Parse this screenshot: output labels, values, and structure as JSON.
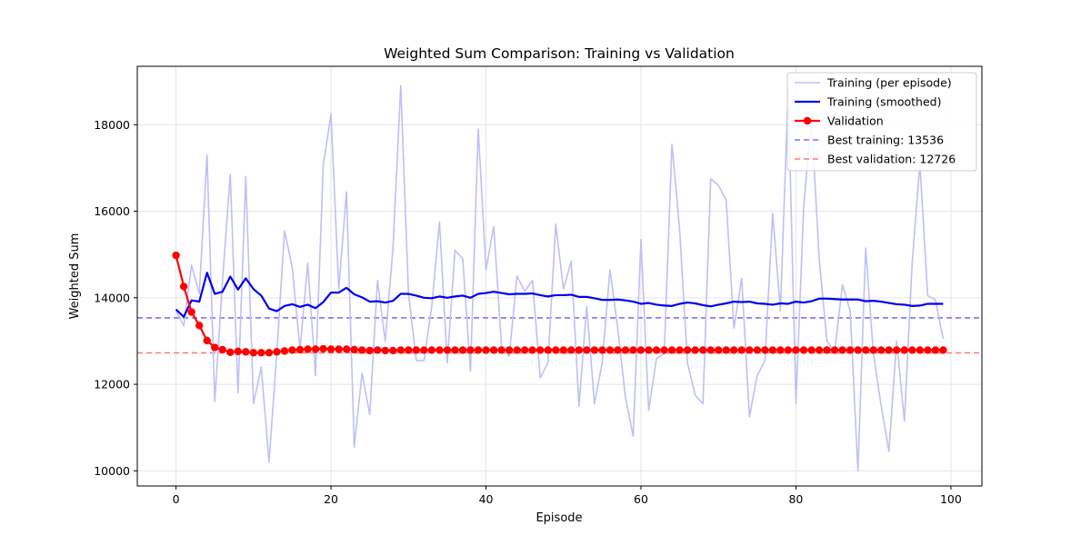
{
  "chart_data": {
    "type": "line",
    "title": "Weighted Sum Comparison: Training vs Validation",
    "xlabel": "Episode",
    "ylabel": "Weighted Sum",
    "xlim": [
      -5,
      104
    ],
    "ylim": [
      9650,
      19350
    ],
    "xticks": [
      0,
      20,
      40,
      60,
      80,
      100
    ],
    "yticks": [
      10000,
      12000,
      14000,
      16000,
      18000
    ],
    "grid": true,
    "legend_position": "top-right",
    "colors": {
      "training_raw": "#bfbff7",
      "training_smoothed": "#0000ee",
      "validation": "#ff0000",
      "best_training": "#7777ee",
      "best_validation": "#ff7777"
    },
    "series": [
      {
        "name": "Training (per episode)",
        "style": "line",
        "x_start": 0,
        "values": [
          13700,
          13350,
          14750,
          14100,
          17300,
          11600,
          14400,
          16850,
          11800,
          16800,
          11550,
          12400,
          10200,
          12700,
          15550,
          14700,
          12800,
          14800,
          12200,
          17050,
          18250,
          14200,
          16450,
          10550,
          12250,
          11300,
          14400,
          13000,
          15150,
          18900,
          14100,
          12550,
          12550,
          13800,
          15750,
          12500,
          15100,
          14900,
          12300,
          17900,
          14650,
          15650,
          12900,
          12650,
          14500,
          14150,
          14400,
          12150,
          12500,
          15700,
          14200,
          14850,
          11500,
          13800,
          11550,
          12500,
          14650,
          13300,
          11700,
          10800,
          15350,
          11400,
          12600,
          12700,
          17550,
          15550,
          12500,
          11750,
          11550,
          16750,
          16600,
          16250,
          13300,
          14450,
          11250,
          12200,
          12550,
          15950,
          13700,
          18850,
          11550,
          16100,
          18150,
          14900,
          13000,
          12750,
          14300,
          13700,
          10000,
          15150,
          12700,
          11500,
          10450,
          13000,
          11150,
          14800,
          17100,
          14050,
          13950,
          13050
        ]
      },
      {
        "name": "Training (smoothed)",
        "style": "line",
        "x_start": 0,
        "values": [
          13730,
          13560,
          13940,
          13910,
          14580,
          14090,
          14140,
          14490,
          14190,
          14450,
          14200,
          14050,
          13750,
          13690,
          13810,
          13850,
          13790,
          13840,
          13760,
          13900,
          14120,
          14120,
          14230,
          14080,
          14010,
          13910,
          13920,
          13890,
          13930,
          14090,
          14090,
          14050,
          14000,
          13990,
          14030,
          14000,
          14030,
          14050,
          14000,
          14090,
          14110,
          14140,
          14110,
          14080,
          14090,
          14090,
          14100,
          14060,
          14030,
          14060,
          14060,
          14070,
          14020,
          14020,
          13990,
          13950,
          13950,
          13960,
          13940,
          13910,
          13860,
          13880,
          13840,
          13820,
          13810,
          13860,
          13890,
          13870,
          13830,
          13800,
          13840,
          13870,
          13910,
          13900,
          13910,
          13870,
          13860,
          13840,
          13870,
          13860,
          13910,
          13890,
          13920,
          13980,
          13980,
          13970,
          13960,
          13960,
          13960,
          13920,
          13930,
          13910,
          13880,
          13850,
          13840,
          13810,
          13820,
          13860,
          13860,
          13860
        ]
      },
      {
        "name": "Validation",
        "style": "line-marker",
        "x_start": 0,
        "values": [
          14980,
          14260,
          13670,
          13360,
          13010,
          12850,
          12800,
          12740,
          12760,
          12750,
          12730,
          12730,
          12730,
          12750,
          12770,
          12790,
          12800,
          12810,
          12810,
          12820,
          12810,
          12810,
          12810,
          12800,
          12790,
          12780,
          12790,
          12780,
          12780,
          12790,
          12790,
          12790,
          12790,
          12790,
          12790,
          12790,
          12790,
          12790,
          12790,
          12790,
          12790,
          12790,
          12790,
          12790,
          12790,
          12790,
          12790,
          12790,
          12790,
          12790,
          12790,
          12790,
          12790,
          12790,
          12790,
          12790,
          12790,
          12790,
          12790,
          12790,
          12790,
          12790,
          12790,
          12790,
          12790,
          12790,
          12790,
          12790,
          12790,
          12790,
          12790,
          12790,
          12790,
          12790,
          12790,
          12790,
          12790,
          12790,
          12790,
          12790,
          12790,
          12790,
          12790,
          12790,
          12790,
          12790,
          12790,
          12790,
          12790,
          12790,
          12790,
          12790,
          12790,
          12790,
          12790,
          12790,
          12790,
          12790,
          12790,
          12790
        ]
      }
    ],
    "reference_lines": [
      {
        "name": "Best training: 13536",
        "y": 13536
      },
      {
        "name": "Best validation: 12726",
        "y": 12726
      }
    ]
  }
}
